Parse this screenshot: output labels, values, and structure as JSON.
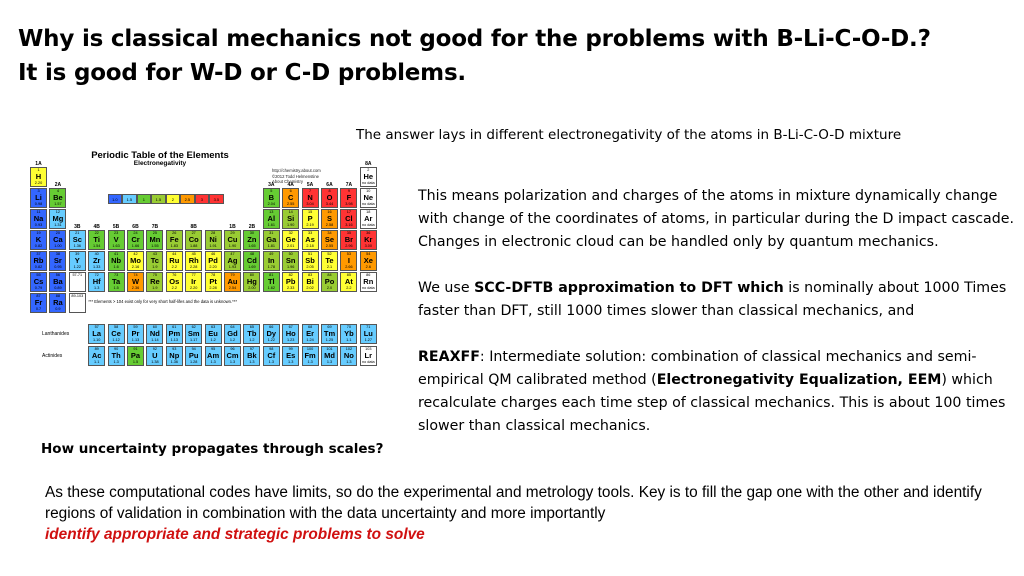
{
  "title": {
    "line1": "Why is classical mechanics not good for the problems  with B-Li-C-O-D.?",
    "line2": "It is good for W-D or C-D problems."
  },
  "answer_text": "The answer lays in different electronegativity of the atoms in B-Li-C-O-D mixture",
  "right": {
    "p1": "This means polarization and charges of the atoms in mixture dynamically change  with change of the coordinates of atoms, in particular  during the D impact cascade.  Changes in electronic cloud can be handled only by quantum mechanics.",
    "p2_pre": "We use ",
    "p2_bold": "SCC-DFTB approximation to DFT which",
    "p2_post": " is nominally about 1000 Times faster than DFT,  still 1000 times slower than classical mechanics, and",
    "p3_bold1": "REAXFF",
    "p3_mid": ":  Intermediate solution: combination of classical mechanics  and semi-empirical QM calibrated method (",
    "p3_bold2": "Electronegativity Equalization, EEM",
    "p3_post": ") which recalculate charges each time step of classical mechanics. This is about  100 times slower than classical mechanics."
  },
  "uncertainty_question": "How uncertainty propagates through scales?",
  "bottom": {
    "text": "As these computational codes have limits, so do the experimental and metrology tools. Key is to fill the gap one with the other and identify regions of validation in combination with the data uncertainty and more importantly",
    "emphasis": "identify appropriate and strategic problems to solve"
  },
  "periodic_table": {
    "title": "Periodic Table of the Elements",
    "subtitle": "Electronegativity",
    "credit": [
      "http://chemistry.about.com",
      "©2012 Todd Helmenstine",
      "About Chemistry"
    ],
    "footnote": "*** Elements > 104 exist only for very short half-lifes and the data is unknown.***",
    "lanthanides_label": "Lanthanides",
    "actinides_label": "Actinides",
    "scale": [
      "1.0",
      "1.5",
      "1",
      "1.5",
      "2",
      "2.5",
      "3",
      "3.5"
    ],
    "groups": [
      "1A",
      "2A",
      "3B",
      "4B",
      "5B",
      "6B",
      "7B",
      "8B",
      "1B",
      "2B",
      "3A",
      "4A",
      "5A",
      "6A",
      "7A",
      "8A"
    ],
    "rows": [
      [
        {
          "n": "1",
          "s": "H",
          "e": "2.20",
          "c": "#ffff33"
        },
        null,
        null,
        null,
        null,
        null,
        null,
        null,
        null,
        null,
        null,
        null,
        null,
        null,
        null,
        null,
        null,
        {
          "n": "2",
          "s": "He",
          "e": "no data",
          "c": "#ffffff"
        }
      ],
      [
        {
          "n": "3",
          "s": "Li",
          "e": "0.98",
          "c": "#3366ff"
        },
        {
          "n": "4",
          "s": "Be",
          "e": "1.57",
          "c": "#66cc33"
        },
        null,
        null,
        null,
        null,
        null,
        null,
        null,
        null,
        null,
        null,
        {
          "n": "5",
          "s": "B",
          "e": "2.04",
          "c": "#66cc33"
        },
        {
          "n": "6",
          "s": "C",
          "e": "2.55",
          "c": "#ff9900"
        },
        {
          "n": "7",
          "s": "N",
          "e": "3.04",
          "c": "#ff3333"
        },
        {
          "n": "8",
          "s": "O",
          "e": "3.44",
          "c": "#ff3333"
        },
        {
          "n": "9",
          "s": "F",
          "e": "3.98",
          "c": "#ff3333"
        },
        {
          "n": "10",
          "s": "Ne",
          "e": "no data",
          "c": "#ffffff"
        }
      ],
      [
        {
          "n": "11",
          "s": "Na",
          "e": "0.93",
          "c": "#3366ff"
        },
        {
          "n": "12",
          "s": "Mg",
          "e": "1.31",
          "c": "#66ccff"
        },
        null,
        null,
        null,
        null,
        null,
        null,
        null,
        null,
        null,
        null,
        {
          "n": "13",
          "s": "Al",
          "e": "1.61",
          "c": "#66cc33"
        },
        {
          "n": "14",
          "s": "Si",
          "e": "1.90",
          "c": "#99cc33"
        },
        {
          "n": "15",
          "s": "P",
          "e": "2.19",
          "c": "#ffff33"
        },
        {
          "n": "16",
          "s": "S",
          "e": "2.58",
          "c": "#ff9900"
        },
        {
          "n": "17",
          "s": "Cl",
          "e": "3.16",
          "c": "#ff3333"
        },
        {
          "n": "18",
          "s": "Ar",
          "e": "no data",
          "c": "#ffffff"
        }
      ],
      [
        {
          "n": "19",
          "s": "K",
          "e": "0.82",
          "c": "#3366ff"
        },
        {
          "n": "20",
          "s": "Ca",
          "e": "1.00",
          "c": "#3366ff"
        },
        {
          "n": "21",
          "s": "Sc",
          "e": "1.36",
          "c": "#66ccff"
        },
        {
          "n": "22",
          "s": "Ti",
          "e": "1.54",
          "c": "#66cc33"
        },
        {
          "n": "23",
          "s": "V",
          "e": "1.63",
          "c": "#66cc33"
        },
        {
          "n": "24",
          "s": "Cr",
          "e": "1.66",
          "c": "#66cc33"
        },
        {
          "n": "25",
          "s": "Mn",
          "e": "1.55",
          "c": "#66cc33"
        },
        {
          "n": "26",
          "s": "Fe",
          "e": "1.83",
          "c": "#99cc33"
        },
        {
          "n": "27",
          "s": "Co",
          "e": "1.88",
          "c": "#99cc33"
        },
        {
          "n": "28",
          "s": "Ni",
          "e": "1.91",
          "c": "#99cc33"
        },
        {
          "n": "29",
          "s": "Cu",
          "e": "1.90",
          "c": "#99cc33"
        },
        {
          "n": "30",
          "s": "Zn",
          "e": "1.65",
          "c": "#66cc33"
        },
        {
          "n": "31",
          "s": "Ga",
          "e": "1.81",
          "c": "#99cc33"
        },
        {
          "n": "32",
          "s": "Ge",
          "e": "2.01",
          "c": "#ffff33"
        },
        {
          "n": "33",
          "s": "As",
          "e": "2.18",
          "c": "#ffff33"
        },
        {
          "n": "34",
          "s": "Se",
          "e": "2.55",
          "c": "#ff9900"
        },
        {
          "n": "35",
          "s": "Br",
          "e": "2.96",
          "c": "#ff3333"
        },
        {
          "n": "36",
          "s": "Kr",
          "e": "3.00",
          "c": "#ff3333"
        }
      ],
      [
        {
          "n": "37",
          "s": "Rb",
          "e": "0.82",
          "c": "#3366ff"
        },
        {
          "n": "38",
          "s": "Sr",
          "e": "0.95",
          "c": "#3366ff"
        },
        {
          "n": "39",
          "s": "Y",
          "e": "1.22",
          "c": "#66ccff"
        },
        {
          "n": "40",
          "s": "Zr",
          "e": "1.33",
          "c": "#66ccff"
        },
        {
          "n": "41",
          "s": "Nb",
          "e": "1.6",
          "c": "#66cc33"
        },
        {
          "n": "42",
          "s": "Mo",
          "e": "2.16",
          "c": "#ffff33"
        },
        {
          "n": "43",
          "s": "Tc",
          "e": "1.9",
          "c": "#99cc33"
        },
        {
          "n": "44",
          "s": "Ru",
          "e": "2.2",
          "c": "#ffff33"
        },
        {
          "n": "45",
          "s": "Rh",
          "e": "2.28",
          "c": "#ffff33"
        },
        {
          "n": "46",
          "s": "Pd",
          "e": "2.20",
          "c": "#ffff33"
        },
        {
          "n": "47",
          "s": "Ag",
          "e": "1.93",
          "c": "#99cc33"
        },
        {
          "n": "48",
          "s": "Cd",
          "e": "1.69",
          "c": "#66cc33"
        },
        {
          "n": "49",
          "s": "In",
          "e": "1.78",
          "c": "#99cc33"
        },
        {
          "n": "50",
          "s": "Sn",
          "e": "1.96",
          "c": "#99cc33"
        },
        {
          "n": "51",
          "s": "Sb",
          "e": "2.05",
          "c": "#ffff33"
        },
        {
          "n": "52",
          "s": "Te",
          "e": "2.1",
          "c": "#ffff33"
        },
        {
          "n": "53",
          "s": "I",
          "e": "2.66",
          "c": "#ff9900"
        },
        {
          "n": "54",
          "s": "Xe",
          "e": "2.6",
          "c": "#ff9900"
        }
      ],
      [
        {
          "n": "55",
          "s": "Cs",
          "e": "0.79",
          "c": "#3366ff"
        },
        {
          "n": "56",
          "s": "Ba",
          "e": "0.89",
          "c": "#3366ff"
        },
        {
          "n": "57-71",
          "s": "",
          "e": "",
          "c": "#ffffff"
        },
        {
          "n": "72",
          "s": "Hf",
          "e": "1.3",
          "c": "#66ccff"
        },
        {
          "n": "73",
          "s": "Ta",
          "e": "1.5",
          "c": "#66cc33"
        },
        {
          "n": "74",
          "s": "W",
          "e": "2.36",
          "c": "#ff9900"
        },
        {
          "n": "75",
          "s": "Re",
          "e": "1.9",
          "c": "#99cc33"
        },
        {
          "n": "76",
          "s": "Os",
          "e": "2.2",
          "c": "#ffff33"
        },
        {
          "n": "77",
          "s": "Ir",
          "e": "2.20",
          "c": "#ffff33"
        },
        {
          "n": "78",
          "s": "Pt",
          "e": "2.28",
          "c": "#ffff33"
        },
        {
          "n": "79",
          "s": "Au",
          "e": "2.54",
          "c": "#ff9900"
        },
        {
          "n": "80",
          "s": "Hg",
          "e": "2.00",
          "c": "#99cc33"
        },
        {
          "n": "81",
          "s": "Tl",
          "e": "1.62",
          "c": "#66cc33"
        },
        {
          "n": "82",
          "s": "Pb",
          "e": "2.33",
          "c": "#ffff33"
        },
        {
          "n": "83",
          "s": "Bi",
          "e": "2.02",
          "c": "#ffff33"
        },
        {
          "n": "84",
          "s": "Po",
          "e": "2.0",
          "c": "#99cc33"
        },
        {
          "n": "85",
          "s": "At",
          "e": "2.2",
          "c": "#ffff33"
        },
        {
          "n": "86",
          "s": "Rn",
          "e": "no data",
          "c": "#ffffff"
        }
      ],
      [
        {
          "n": "87",
          "s": "Fr",
          "e": "0.7",
          "c": "#3366ff"
        },
        {
          "n": "88",
          "s": "Ra",
          "e": "0.9",
          "c": "#3366ff"
        },
        {
          "n": "89-103",
          "s": "",
          "e": "",
          "c": "#ffffff"
        },
        null,
        null,
        null,
        null,
        null,
        null,
        null,
        null,
        null,
        null,
        null,
        null,
        null,
        null,
        null
      ]
    ],
    "lanthanides": [
      {
        "n": "57",
        "s": "La",
        "e": "1.10",
        "c": "#66ccff"
      },
      {
        "n": "58",
        "s": "Ce",
        "e": "1.12",
        "c": "#66ccff"
      },
      {
        "n": "59",
        "s": "Pr",
        "e": "1.13",
        "c": "#66ccff"
      },
      {
        "n": "60",
        "s": "Nd",
        "e": "1.14",
        "c": "#66ccff"
      },
      {
        "n": "61",
        "s": "Pm",
        "e": "1.13",
        "c": "#66ccff"
      },
      {
        "n": "62",
        "s": "Sm",
        "e": "1.17",
        "c": "#66ccff"
      },
      {
        "n": "63",
        "s": "Eu",
        "e": "1.2",
        "c": "#66ccff"
      },
      {
        "n": "64",
        "s": "Gd",
        "e": "1.2",
        "c": "#66ccff"
      },
      {
        "n": "65",
        "s": "Tb",
        "e": "1.2",
        "c": "#66ccff"
      },
      {
        "n": "66",
        "s": "Dy",
        "e": "1.22",
        "c": "#66ccff"
      },
      {
        "n": "67",
        "s": "Ho",
        "e": "1.23",
        "c": "#66ccff"
      },
      {
        "n": "68",
        "s": "Er",
        "e": "1.24",
        "c": "#66ccff"
      },
      {
        "n": "69",
        "s": "Tm",
        "e": "1.25",
        "c": "#66ccff"
      },
      {
        "n": "70",
        "s": "Yb",
        "e": "1.1",
        "c": "#66ccff"
      },
      {
        "n": "71",
        "s": "Lu",
        "e": "1.27",
        "c": "#66ccff"
      }
    ],
    "actinides": [
      {
        "n": "89",
        "s": "Ac",
        "e": "1.1",
        "c": "#66ccff"
      },
      {
        "n": "90",
        "s": "Th",
        "e": "1.3",
        "c": "#66ccff"
      },
      {
        "n": "91",
        "s": "Pa",
        "e": "1.5",
        "c": "#66cc33"
      },
      {
        "n": "92",
        "s": "U",
        "e": "1.38",
        "c": "#66ccff"
      },
      {
        "n": "93",
        "s": "Np",
        "e": "1.36",
        "c": "#66ccff"
      },
      {
        "n": "94",
        "s": "Pu",
        "e": "1.28",
        "c": "#66ccff"
      },
      {
        "n": "95",
        "s": "Am",
        "e": "1.3",
        "c": "#66ccff"
      },
      {
        "n": "96",
        "s": "Cm",
        "e": "1.3",
        "c": "#66ccff"
      },
      {
        "n": "97",
        "s": "Bk",
        "e": "1.3",
        "c": "#66ccff"
      },
      {
        "n": "98",
        "s": "Cf",
        "e": "1.3",
        "c": "#66ccff"
      },
      {
        "n": "99",
        "s": "Es",
        "e": "1.3",
        "c": "#66ccff"
      },
      {
        "n": "100",
        "s": "Fm",
        "e": "1.3",
        "c": "#66ccff"
      },
      {
        "n": "101",
        "s": "Md",
        "e": "1.3",
        "c": "#66ccff"
      },
      {
        "n": "102",
        "s": "No",
        "e": "1.3",
        "c": "#66ccff"
      },
      {
        "n": "103",
        "s": "Lr",
        "e": "no data",
        "c": "#ffffff"
      }
    ],
    "scale_colors": [
      "#3366ff",
      "#66ccff",
      "#66cc33",
      "#99cc33",
      "#ffff33",
      "#ff9900",
      "#ff3333",
      "#ff3333"
    ]
  },
  "colors": {
    "emphasis": "#d01010",
    "text": "#000000",
    "background": "#ffffff"
  }
}
